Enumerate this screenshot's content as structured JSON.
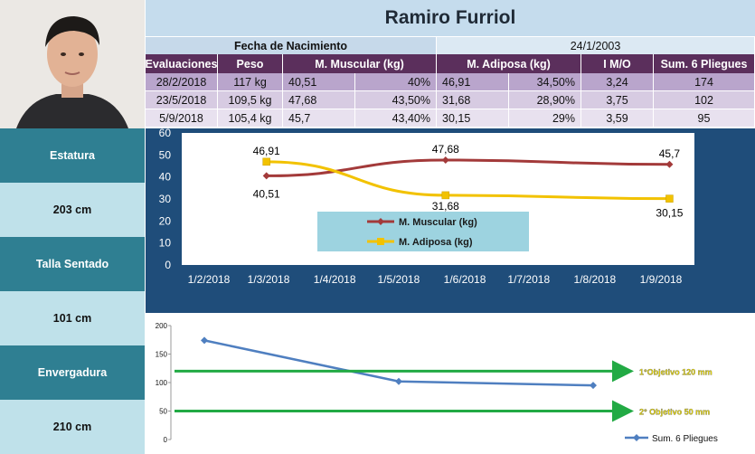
{
  "name": "Ramiro Furriol",
  "birth": {
    "label": "Fecha de Nacimiento",
    "value": "24/1/2003"
  },
  "table": {
    "headers": [
      "Evaluaciones",
      "Peso",
      "M. Muscular (kg)",
      "M. Adiposa (kg)",
      "I M/O",
      "Sum. 6 Pliegues"
    ],
    "rows": [
      [
        "28/2/2018",
        "117 kg",
        "40,51",
        "40%",
        "46,91",
        "34,50%",
        "3,24",
        "174"
      ],
      [
        "23/5/2018",
        "109,5 kg",
        "47,68",
        "43,50%",
        "31,68",
        "28,90%",
        "3,75",
        "102"
      ],
      [
        "5/9/2018",
        "105,4 kg",
        "45,7",
        "43,40%",
        "30,15",
        "29%",
        "3,59",
        "95"
      ]
    ]
  },
  "sidebar": [
    {
      "label": "Estatura",
      "value": "203 cm"
    },
    {
      "label": "Talla Sentado",
      "value": "101 cm"
    },
    {
      "label": "Envergadura",
      "value": "210 cm"
    }
  ],
  "colors": {
    "muscular": "#a33a3a",
    "adiposa": "#f2c200",
    "pliegues": "#4f7fc0",
    "objective": "#22aa44",
    "objective_text": "#f0e000"
  },
  "chart_data": [
    {
      "type": "line",
      "categories": [
        "1/2/2018",
        "1/3/2018",
        "1/4/2018",
        "1/5/2018",
        "1/6/2018",
        "1/7/2018",
        "1/8/2018",
        "1/9/2018"
      ],
      "series": [
        {
          "name": "M. Muscular (kg)",
          "points": [
            [
              "28/2/2018",
              40.51
            ],
            [
              "23/5/2018",
              47.68
            ],
            [
              "5/9/2018",
              45.7
            ]
          ],
          "labels": [
            "40,51",
            "47,68",
            "45,7"
          ]
        },
        {
          "name": "M. Adiposa (kg)",
          "points": [
            [
              "28/2/2018",
              46.91
            ],
            [
              "23/5/2018",
              31.68
            ],
            [
              "5/9/2018",
              30.15
            ]
          ],
          "labels": [
            "46,91",
            "31,68",
            "30,15"
          ]
        }
      ],
      "yticks": [
        "0",
        "10",
        "20",
        "30",
        "40",
        "50",
        "60"
      ],
      "ylim": [
        0,
        60
      ],
      "legend": "center"
    },
    {
      "type": "line",
      "series": [
        {
          "name": "Sum. 6 Pliegues",
          "values": [
            174,
            102,
            95
          ]
        }
      ],
      "yticks": [
        "0",
        "50",
        "100",
        "150",
        "200"
      ],
      "ylim": [
        0,
        200
      ],
      "objectives": [
        {
          "label": "1°Objetivo 120 mm",
          "value": 120
        },
        {
          "label": "2° Objetivo 50 mm",
          "value": 50
        }
      ],
      "legend": "bottom-right"
    }
  ]
}
